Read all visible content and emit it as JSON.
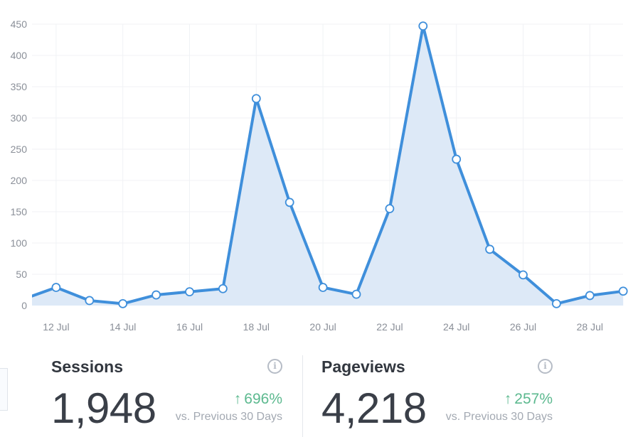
{
  "chart_data": {
    "type": "area",
    "title": "",
    "xlabel": "",
    "ylabel": "",
    "x": [
      "11 Jul",
      "12 Jul",
      "13 Jul",
      "14 Jul",
      "15 Jul",
      "16 Jul",
      "17 Jul",
      "18 Jul",
      "19 Jul",
      "20 Jul",
      "21 Jul",
      "22 Jul",
      "23 Jul",
      "24 Jul",
      "25 Jul",
      "26 Jul",
      "27 Jul",
      "28 Jul",
      "29 Jul"
    ],
    "x_tick_labels": [
      "12 Jul",
      "14 Jul",
      "16 Jul",
      "18 Jul",
      "20 Jul",
      "22 Jul",
      "24 Jul",
      "26 Jul",
      "28 Jul"
    ],
    "y_ticks": [
      0,
      50,
      100,
      150,
      200,
      250,
      300,
      350,
      400,
      450
    ],
    "ylim": [
      0,
      450
    ],
    "grid": true,
    "series": [
      {
        "values": [
          10,
          29,
          8,
          3,
          17,
          22,
          27,
          331,
          165,
          29,
          18,
          155,
          447,
          234,
          90,
          49,
          3,
          16,
          23
        ]
      }
    ],
    "colors": {
      "line": "#3f8fdb",
      "fill": "#dde9f7",
      "point_fill": "#ffffff"
    }
  },
  "stats": {
    "sessions": {
      "title": "Sessions",
      "value": "1,948",
      "change": "696%",
      "change_direction": "up",
      "comparison": "vs. Previous 30 Days",
      "info_icon": "info-icon"
    },
    "pageviews": {
      "title": "Pageviews",
      "value": "4,218",
      "change": "257%",
      "change_direction": "up",
      "comparison": "vs. Previous 30 Days",
      "info_icon": "info-icon"
    }
  },
  "colors": {
    "positive_change": "#5cb98f",
    "text_dark": "#32373f",
    "muted": "#a3a9b2"
  }
}
